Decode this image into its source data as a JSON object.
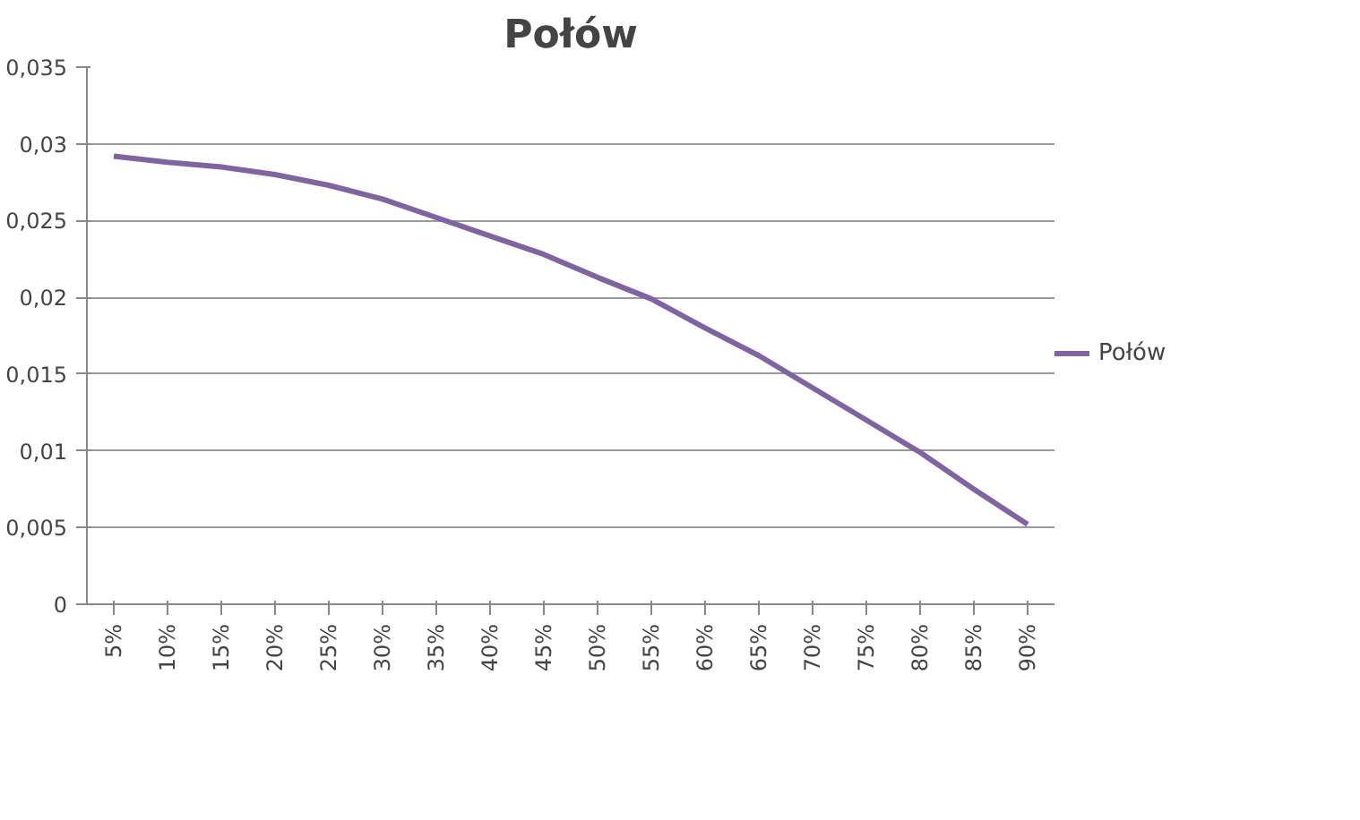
{
  "chart_data": {
    "type": "line",
    "title": "Połów",
    "categories": [
      "5%",
      "10%",
      "15%",
      "20%",
      "25%",
      "30%",
      "35%",
      "40%",
      "45%",
      "50%",
      "55%",
      "60%",
      "65%",
      "70%",
      "75%",
      "80%",
      "85%",
      "90%"
    ],
    "series": [
      {
        "name": "Połów",
        "color": "#8064a2",
        "values": [
          0.0292,
          0.0288,
          0.0285,
          0.028,
          0.0273,
          0.0264,
          0.0252,
          0.024,
          0.0228,
          0.0213,
          0.0199,
          0.018,
          0.0162,
          0.0141,
          0.012,
          0.0099,
          0.0075,
          0.0052
        ]
      }
    ],
    "ylim": [
      0,
      0.035
    ],
    "yticks": [
      {
        "value": 0,
        "label": "0"
      },
      {
        "value": 0.005,
        "label": "0,005"
      },
      {
        "value": 0.01,
        "label": "0,01"
      },
      {
        "value": 0.015,
        "label": "0,015"
      },
      {
        "value": 0.02,
        "label": "0,02"
      },
      {
        "value": 0.025,
        "label": "0,025"
      },
      {
        "value": 0.03,
        "label": "0,03"
      },
      {
        "value": 0.035,
        "label": "0,035"
      }
    ],
    "grid": "y",
    "legend": "right",
    "marker": "none",
    "line_style": "solid"
  }
}
